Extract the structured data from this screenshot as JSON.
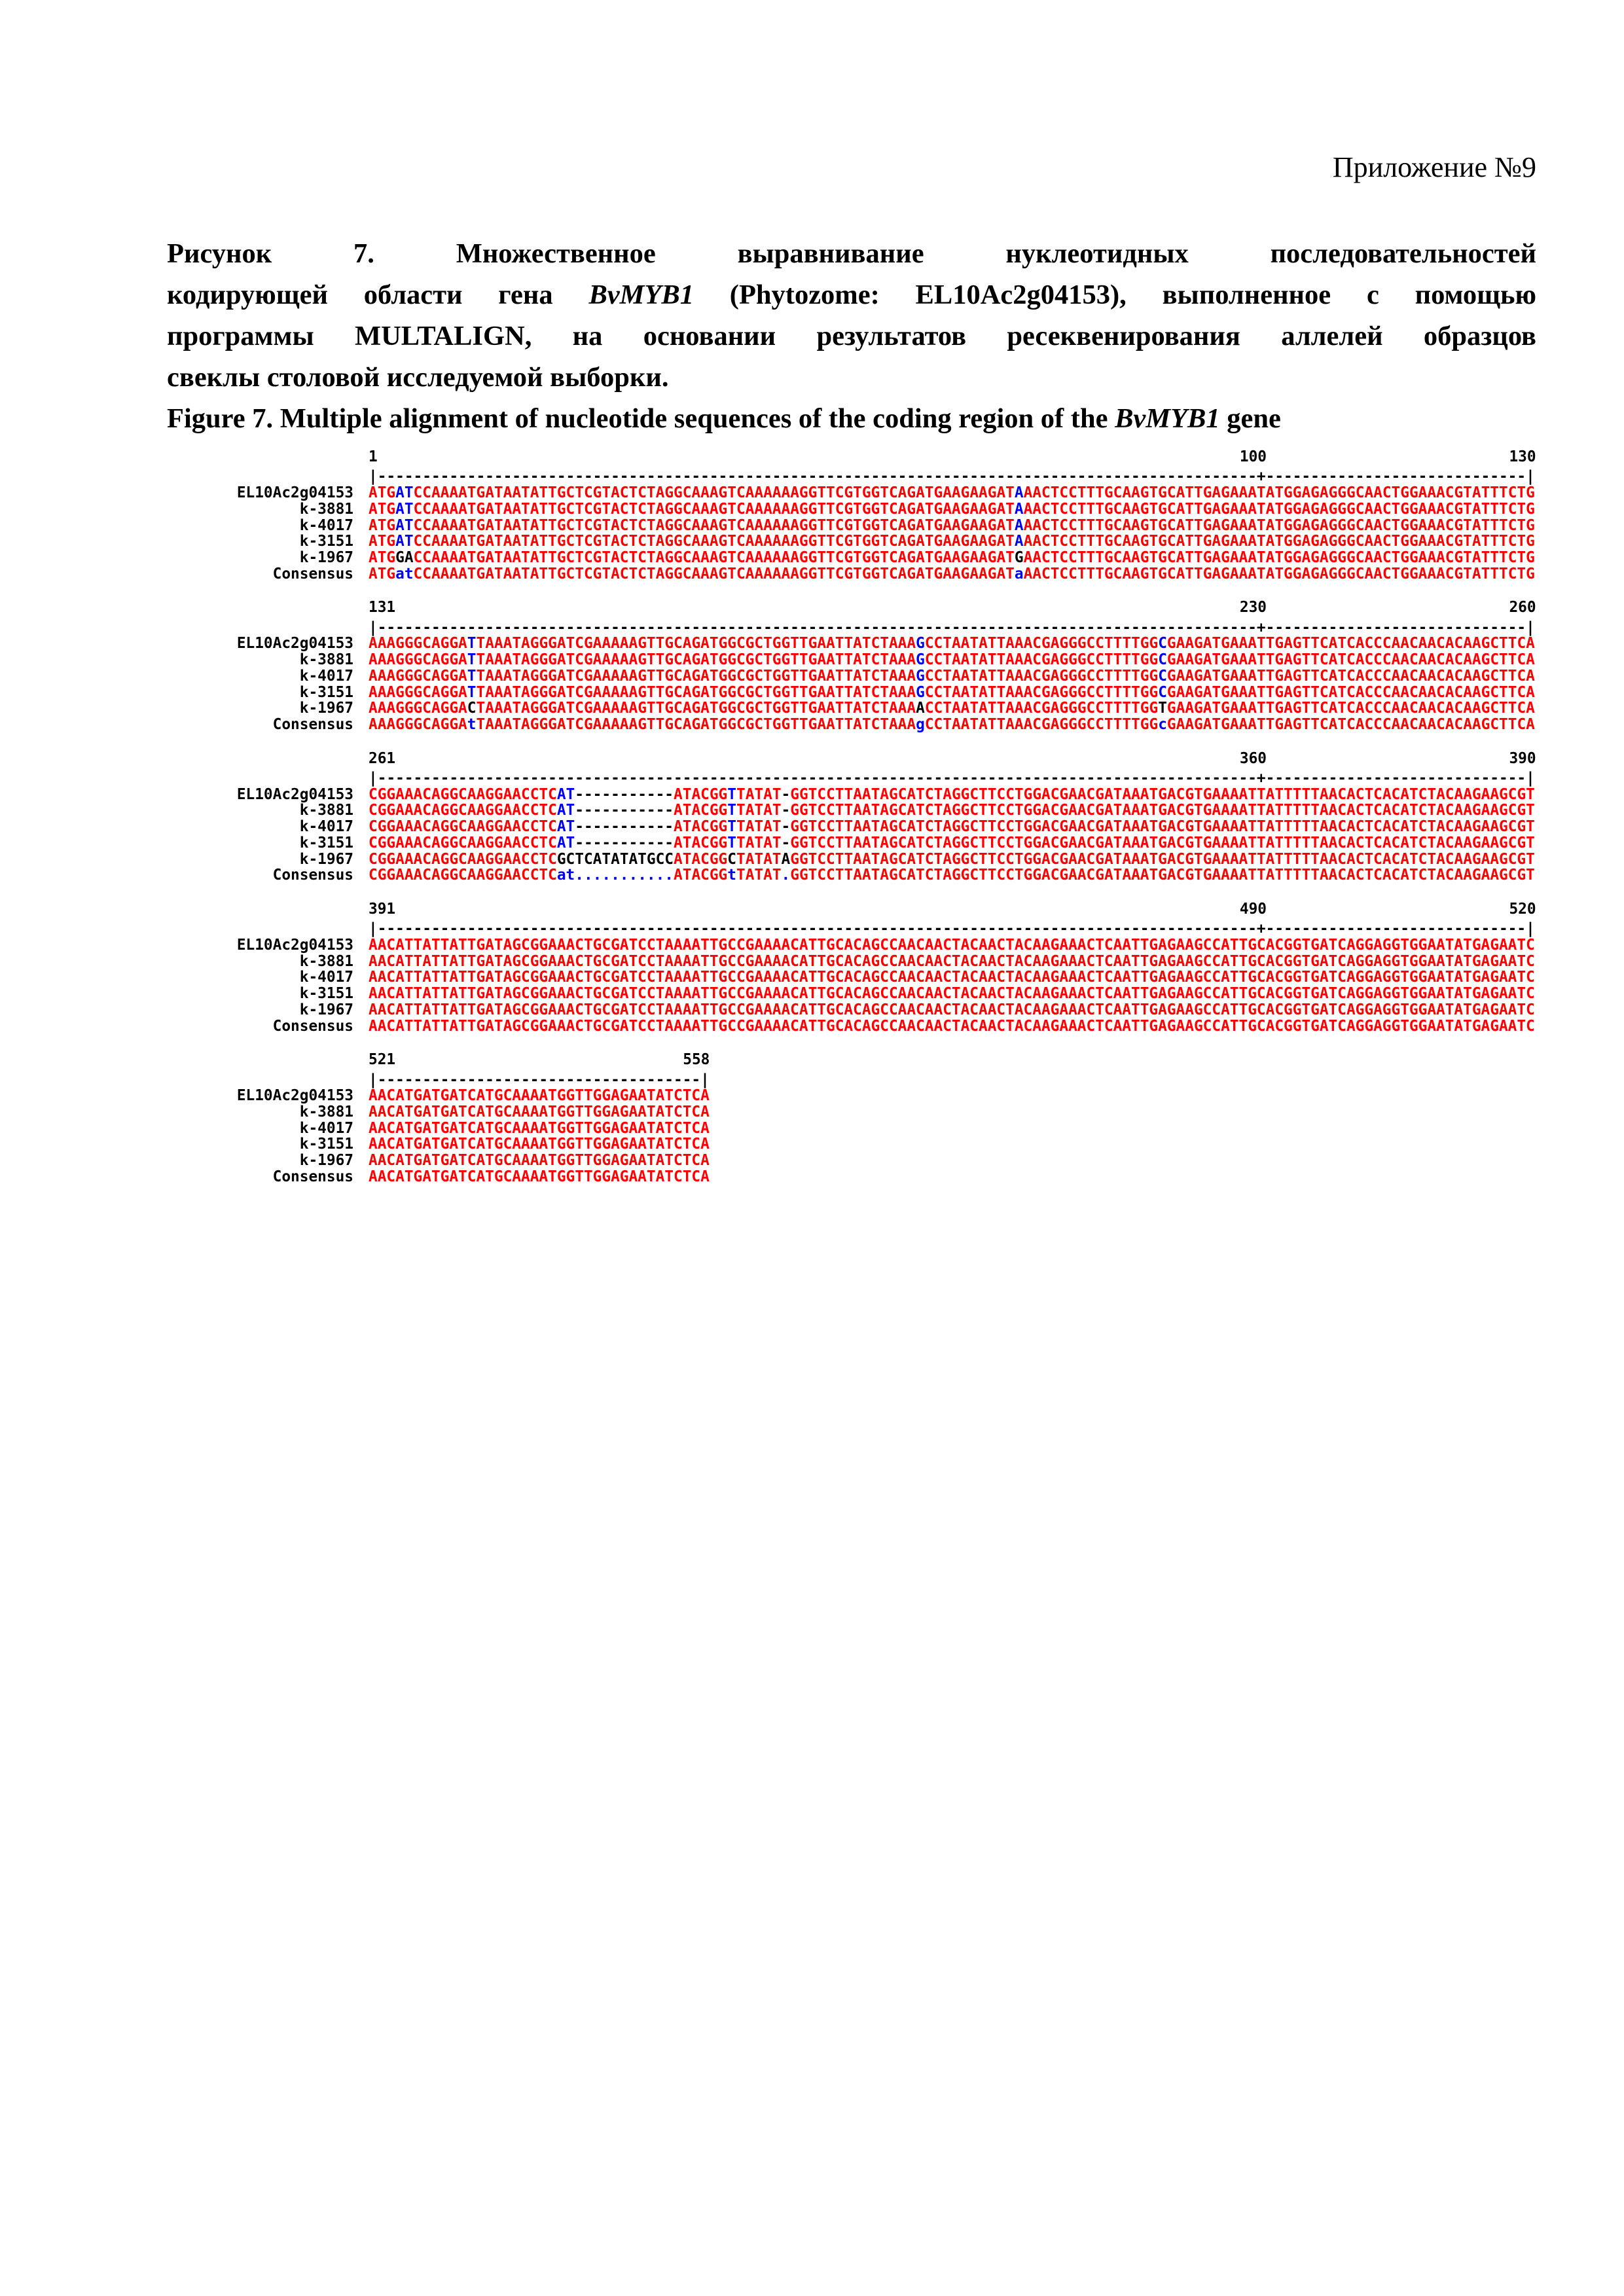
{
  "page": {
    "annotation": "Приложение №9"
  },
  "caption_ru": {
    "lines": [
      {
        "justify": true,
        "segments": [
          {
            "t": "Рисунок 7. Множественное выравнивание нуклеотидных последовательностей"
          }
        ]
      },
      {
        "justify": true,
        "segments": [
          {
            "t": "кодирующей области гена "
          },
          {
            "t": "BvMYB1",
            "i": true
          },
          {
            "t": " (Phytozome: EL10Ac2g04153), выполненное с помощью"
          }
        ]
      },
      {
        "justify": true,
        "segments": [
          {
            "t": "программы MULTALIGN, на основании результатов ресеквенирования аллелей образцов"
          }
        ]
      },
      {
        "justify": false,
        "segments": [
          {
            "t": "свеклы столовой исследуемой выборки."
          }
        ]
      }
    ]
  },
  "caption_en": {
    "segments": [
      {
        "t": "Figure 7. Multiple alignment of nucleotide sequences of the coding region of the "
      },
      {
        "t": "BvMYB1",
        "i": true
      },
      {
        "t": " gene"
      }
    ]
  },
  "alignment": {
    "row_labels": [
      "EL10Ac2g04153",
      "k-3881",
      "k-4017",
      "k-3151",
      "k-1967",
      "Consensus"
    ],
    "colors": {
      "high_consensus": "#fe0000",
      "low_consensus": "#0000f6",
      "neutral": "#000000"
    },
    "blocks": [
      {
        "start": "1",
        "mid": "100",
        "end": "130",
        "len": 130,
        "mid_col": 100,
        "rows": [
          [
            [
              "ATG",
              "r"
            ],
            [
              "AT",
              "b"
            ],
            [
              "CCAAAATGATAATATTGCTCGTACTCTAGGCAAAGTCAAAAAAGGTTCGTGGTCAGATGAAGAAGAT",
              "r"
            ],
            [
              "A",
              "b"
            ],
            [
              "AACTCCTTTGCAAGTGCATTGAGAAATATGGAGAGGGCAACTGGAAACGTATTTCTG",
              "r"
            ]
          ],
          [
            [
              "ATG",
              "r"
            ],
            [
              "AT",
              "b"
            ],
            [
              "CCAAAATGATAATATTGCTCGTACTCTAGGCAAAGTCAAAAAAGGTTCGTGGTCAGATGAAGAAGAT",
              "r"
            ],
            [
              "A",
              "b"
            ],
            [
              "AACTCCTTTGCAAGTGCATTGAGAAATATGGAGAGGGCAACTGGAAACGTATTTCTG",
              "r"
            ]
          ],
          [
            [
              "ATG",
              "r"
            ],
            [
              "AT",
              "b"
            ],
            [
              "CCAAAATGATAATATTGCTCGTACTCTAGGCAAAGTCAAAAAAGGTTCGTGGTCAGATGAAGAAGAT",
              "r"
            ],
            [
              "A",
              "b"
            ],
            [
              "AACTCCTTTGCAAGTGCATTGAGAAATATGGAGAGGGCAACTGGAAACGTATTTCTG",
              "r"
            ]
          ],
          [
            [
              "ATG",
              "r"
            ],
            [
              "AT",
              "b"
            ],
            [
              "CCAAAATGATAATATTGCTCGTACTCTAGGCAAAGTCAAAAAAGGTTCGTGGTCAGATGAAGAAGAT",
              "r"
            ],
            [
              "A",
              "b"
            ],
            [
              "AACTCCTTTGCAAGTGCATTGAGAAATATGGAGAGGGCAACTGGAAACGTATTTCTG",
              "r"
            ]
          ],
          [
            [
              "ATG",
              "r"
            ],
            [
              "GA",
              "k"
            ],
            [
              "CCAAAATGATAATATTGCTCGTACTCTAGGCAAAGTCAAAAAAGGTTCGTGGTCAGATGAAGAAGAT",
              "r"
            ],
            [
              "G",
              "k"
            ],
            [
              "AACTCCTTTGCAAGTGCATTGAGAAATATGGAGAGGGCAACTGGAAACGTATTTCTG",
              "r"
            ]
          ],
          [
            [
              "ATG",
              "r"
            ],
            [
              "at",
              "b"
            ],
            [
              "CCAAAATGATAATATTGCTCGTACTCTAGGCAAAGTCAAAAAAGGTTCGTGGTCAGATGAAGAAGAT",
              "r"
            ],
            [
              "a",
              "b"
            ],
            [
              "AACTCCTTTGCAAGTGCATTGAGAAATATGGAGAGGGCAACTGGAAACGTATTTCTG",
              "r"
            ]
          ]
        ]
      },
      {
        "start": "131",
        "mid": "230",
        "end": "260",
        "len": 130,
        "mid_col": 100,
        "rows": [
          [
            [
              "AAAGGGCAGGA",
              "r"
            ],
            [
              "T",
              "b"
            ],
            [
              "TAAATAGGGATCGAAAAAGTTGCAGATGGCGCTGGTTGAATTATCTAAA",
              "r"
            ],
            [
              "G",
              "b"
            ],
            [
              "CCTAATATTAAACGAGGGCCTTTTGG",
              "r"
            ],
            [
              "C",
              "b"
            ],
            [
              "GAAGATGAAATTGAGTTCATCACCCAACAACACAAGCTTCA",
              "r"
            ]
          ],
          [
            [
              "AAAGGGCAGGA",
              "r"
            ],
            [
              "T",
              "b"
            ],
            [
              "TAAATAGGGATCGAAAAAGTTGCAGATGGCGCTGGTTGAATTATCTAAA",
              "r"
            ],
            [
              "G",
              "b"
            ],
            [
              "CCTAATATTAAACGAGGGCCTTTTGG",
              "r"
            ],
            [
              "C",
              "b"
            ],
            [
              "GAAGATGAAATTGAGTTCATCACCCAACAACACAAGCTTCA",
              "r"
            ]
          ],
          [
            [
              "AAAGGGCAGGA",
              "r"
            ],
            [
              "T",
              "b"
            ],
            [
              "TAAATAGGGATCGAAAAAGTTGCAGATGGCGCTGGTTGAATTATCTAAA",
              "r"
            ],
            [
              "G",
              "b"
            ],
            [
              "CCTAATATTAAACGAGGGCCTTTTGG",
              "r"
            ],
            [
              "C",
              "b"
            ],
            [
              "GAAGATGAAATTGAGTTCATCACCCAACAACACAAGCTTCA",
              "r"
            ]
          ],
          [
            [
              "AAAGGGCAGGA",
              "r"
            ],
            [
              "T",
              "b"
            ],
            [
              "TAAATAGGGATCGAAAAAGTTGCAGATGGCGCTGGTTGAATTATCTAAA",
              "r"
            ],
            [
              "G",
              "b"
            ],
            [
              "CCTAATATTAAACGAGGGCCTTTTGG",
              "r"
            ],
            [
              "C",
              "b"
            ],
            [
              "GAAGATGAAATTGAGTTCATCACCCAACAACACAAGCTTCA",
              "r"
            ]
          ],
          [
            [
              "AAAGGGCAGGA",
              "r"
            ],
            [
              "C",
              "k"
            ],
            [
              "TAAATAGGGATCGAAAAAGTTGCAGATGGCGCTGGTTGAATTATCTAAA",
              "r"
            ],
            [
              "A",
              "k"
            ],
            [
              "CCTAATATTAAACGAGGGCCTTTTGG",
              "r"
            ],
            [
              "T",
              "k"
            ],
            [
              "GAAGATGAAATTGAGTTCATCACCCAACAACACAAGCTTCA",
              "r"
            ]
          ],
          [
            [
              "AAAGGGCAGGA",
              "r"
            ],
            [
              "t",
              "b"
            ],
            [
              "TAAATAGGGATCGAAAAAGTTGCAGATGGCGCTGGTTGAATTATCTAAA",
              "r"
            ],
            [
              "g",
              "b"
            ],
            [
              "CCTAATATTAAACGAGGGCCTTTTGG",
              "r"
            ],
            [
              "c",
              "b"
            ],
            [
              "GAAGATGAAATTGAGTTCATCACCCAACAACACAAGCTTCA",
              "r"
            ]
          ]
        ]
      },
      {
        "start": "261",
        "mid": "360",
        "end": "390",
        "len": 130,
        "mid_col": 100,
        "rows": [
          [
            [
              "CGGAAACAGGCAAGGAACCTC",
              "r"
            ],
            [
              "AT",
              "b"
            ],
            [
              "-----------",
              "k"
            ],
            [
              "ATACGG",
              "r"
            ],
            [
              "T",
              "b"
            ],
            [
              "TATAT",
              "r"
            ],
            [
              "-",
              "k"
            ],
            [
              "GGTCCTTAATAGCATCTAGGCTTCCTGGACGAACGATAAATGACGTGAAAATTATTTTTAACACTCACATCTACAAGAAGCGT",
              "r"
            ]
          ],
          [
            [
              "CGGAAACAGGCAAGGAACCTC",
              "r"
            ],
            [
              "AT",
              "b"
            ],
            [
              "-----------",
              "k"
            ],
            [
              "ATACGG",
              "r"
            ],
            [
              "T",
              "b"
            ],
            [
              "TATAT",
              "r"
            ],
            [
              "-",
              "k"
            ],
            [
              "GGTCCTTAATAGCATCTAGGCTTCCTGGACGAACGATAAATGACGTGAAAATTATTTTTAACACTCACATCTACAAGAAGCGT",
              "r"
            ]
          ],
          [
            [
              "CGGAAACAGGCAAGGAACCTC",
              "r"
            ],
            [
              "AT",
              "b"
            ],
            [
              "-----------",
              "k"
            ],
            [
              "ATACGG",
              "r"
            ],
            [
              "T",
              "b"
            ],
            [
              "TATAT",
              "r"
            ],
            [
              "-",
              "k"
            ],
            [
              "GGTCCTTAATAGCATCTAGGCTTCCTGGACGAACGATAAATGACGTGAAAATTATTTTTAACACTCACATCTACAAGAAGCGT",
              "r"
            ]
          ],
          [
            [
              "CGGAAACAGGCAAGGAACCTC",
              "r"
            ],
            [
              "AT",
              "b"
            ],
            [
              "-----------",
              "k"
            ],
            [
              "ATACGG",
              "r"
            ],
            [
              "T",
              "b"
            ],
            [
              "TATAT",
              "r"
            ],
            [
              "-",
              "k"
            ],
            [
              "GGTCCTTAATAGCATCTAGGCTTCCTGGACGAACGATAAATGACGTGAAAATTATTTTTAACACTCACATCTACAAGAAGCGT",
              "r"
            ]
          ],
          [
            [
              "CGGAAACAGGCAAGGAACCTC",
              "r"
            ],
            [
              "GCTCATATATGCC",
              "k"
            ],
            [
              "ATACGG",
              "r"
            ],
            [
              "C",
              "k"
            ],
            [
              "TATAT",
              "r"
            ],
            [
              "A",
              "k"
            ],
            [
              "GGTCCTTAATAGCATCTAGGCTTCCTGGACGAACGATAAATGACGTGAAAATTATTTTTAACACTCACATCTACAAGAAGCGT",
              "r"
            ]
          ],
          [
            [
              "CGGAAACAGGCAAGGAACCTC",
              "r"
            ],
            [
              "at",
              "b"
            ],
            [
              "...........",
              "b"
            ],
            [
              "ATACGG",
              "r"
            ],
            [
              "t",
              "b"
            ],
            [
              "TATAT",
              "r"
            ],
            [
              ".",
              "b"
            ],
            [
              "GGTCCTTAATAGCATCTAGGCTTCCTGGACGAACGATAAATGACGTGAAAATTATTTTTAACACTCACATCTACAAGAAGCGT",
              "r"
            ]
          ]
        ]
      },
      {
        "start": "391",
        "mid": "490",
        "end": "520",
        "len": 130,
        "mid_col": 100,
        "rows": [
          [
            [
              "AACATTATTATTGATAGCGGAAACTGCGATCCTAAAATTGCCGAAAACATTGCACAGCCAACAACTACAACTACAAGAAACTCAATTGAGAAGCCATTGCACGGTGATCAGGAGGTGGAATATGAGAATC",
              "r"
            ]
          ],
          [
            [
              "AACATTATTATTGATAGCGGAAACTGCGATCCTAAAATTGCCGAAAACATTGCACAGCCAACAACTACAACTACAAGAAACTCAATTGAGAAGCCATTGCACGGTGATCAGGAGGTGGAATATGAGAATC",
              "r"
            ]
          ],
          [
            [
              "AACATTATTATTGATAGCGGAAACTGCGATCCTAAAATTGCCGAAAACATTGCACAGCCAACAACTACAACTACAAGAAACTCAATTGAGAAGCCATTGCACGGTGATCAGGAGGTGGAATATGAGAATC",
              "r"
            ]
          ],
          [
            [
              "AACATTATTATTGATAGCGGAAACTGCGATCCTAAAATTGCCGAAAACATTGCACAGCCAACAACTACAACTACAAGAAACTCAATTGAGAAGCCATTGCACGGTGATCAGGAGGTGGAATATGAGAATC",
              "r"
            ]
          ],
          [
            [
              "AACATTATTATTGATAGCGGAAACTGCGATCCTAAAATTGCCGAAAACATTGCACAGCCAACAACTACAACTACAAGAAACTCAATTGAGAAGCCATTGCACGGTGATCAGGAGGTGGAATATGAGAATC",
              "r"
            ]
          ],
          [
            [
              "AACATTATTATTGATAGCGGAAACTGCGATCCTAAAATTGCCGAAAACATTGCACAGCCAACAACTACAACTACAAGAAACTCAATTGAGAAGCCATTGCACGGTGATCAGGAGGTGGAATATGAGAATC",
              "r"
            ]
          ]
        ]
      },
      {
        "start": "521",
        "mid": null,
        "end": "558",
        "len": 38,
        "mid_col": null,
        "rows": [
          [
            [
              "AACATGATGATCATGCAAAATGGTTGGAGAATATCTCA",
              "r"
            ]
          ],
          [
            [
              "AACATGATGATCATGCAAAATGGTTGGAGAATATCTCA",
              "r"
            ]
          ],
          [
            [
              "AACATGATGATCATGCAAAATGGTTGGAGAATATCTCA",
              "r"
            ]
          ],
          [
            [
              "AACATGATGATCATGCAAAATGGTTGGAGAATATCTCA",
              "r"
            ]
          ],
          [
            [
              "AACATGATGATCATGCAAAATGGTTGGAGAATATCTCA",
              "r"
            ]
          ],
          [
            [
              "AACATGATGATCATGCAAAATGGTTGGAGAATATCTCA",
              "r"
            ]
          ]
        ]
      }
    ]
  }
}
